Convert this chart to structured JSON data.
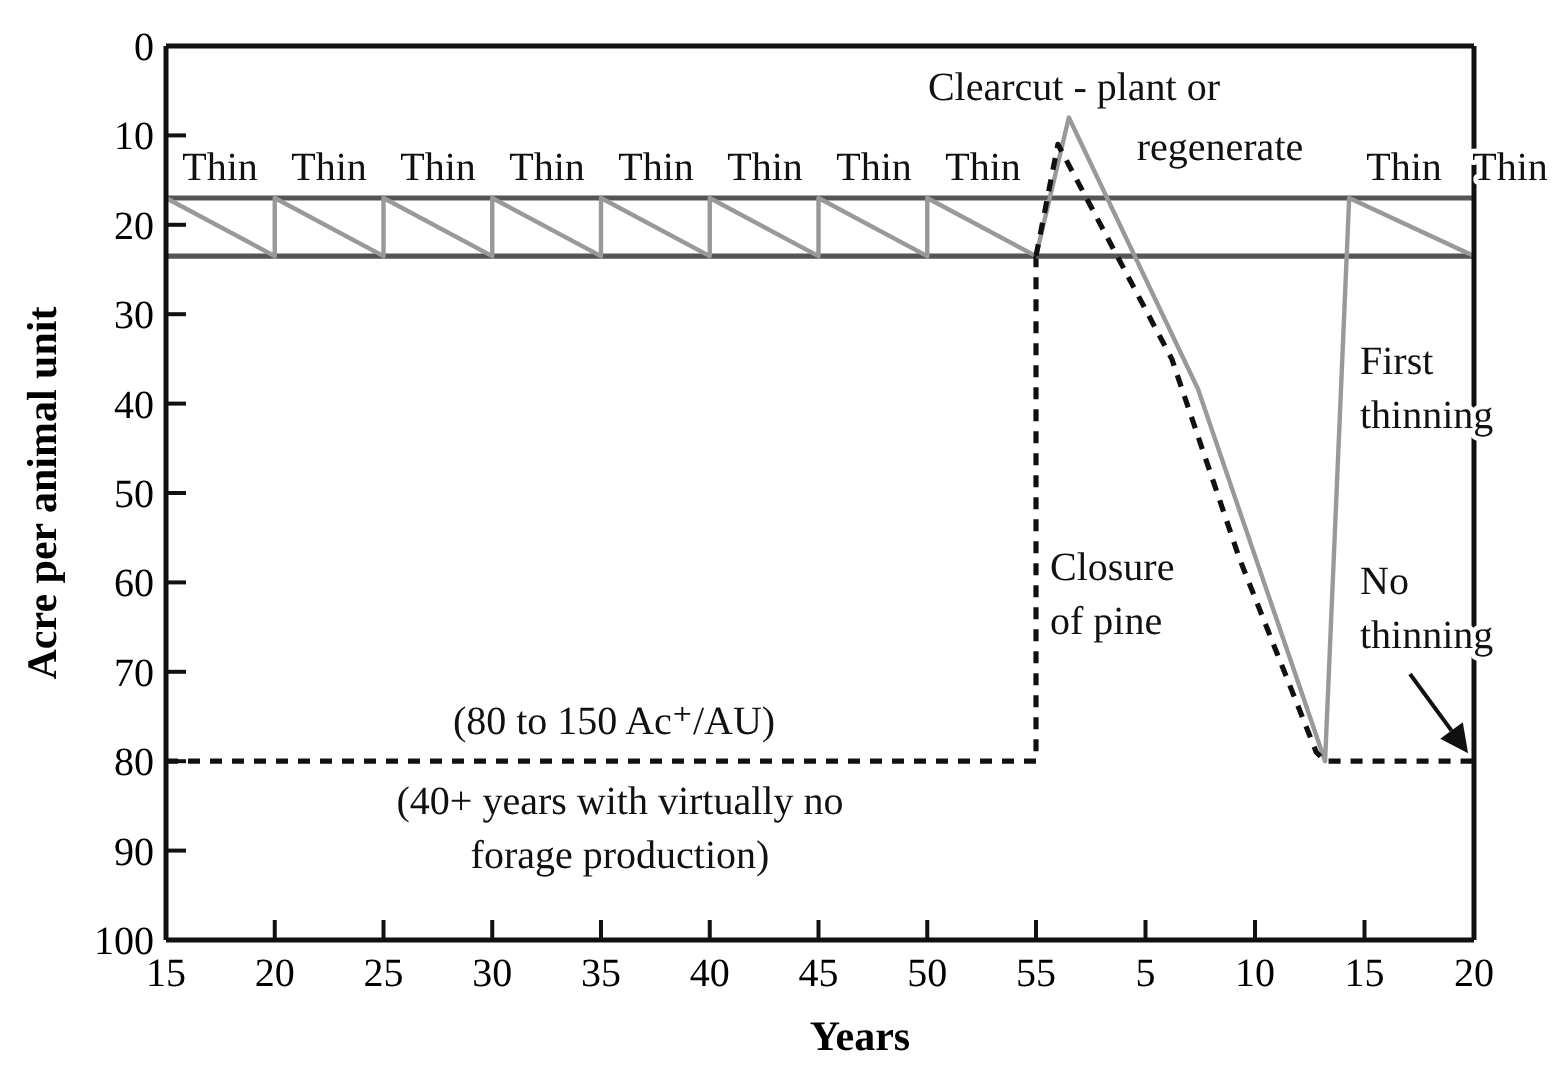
{
  "chart_data": [
    {
      "type": "line",
      "xlabel": "Years",
      "ylabel": "Acre per animal unit",
      "marker": "none",
      "xlim": [
        15,
        55
      ],
      "xticks": [
        15,
        20,
        25,
        30,
        35,
        40,
        45,
        50,
        55
      ],
      "ylim": [
        100,
        0
      ],
      "yticks": [
        0,
        10,
        20,
        30,
        40,
        50,
        60,
        70,
        80,
        90,
        100
      ],
      "series": [
        {
          "color": "#999999",
          "line_style": "solid",
          "x": [
            15,
            20,
            20,
            25,
            25,
            30,
            30,
            35,
            35,
            40,
            40,
            45,
            45,
            50,
            50,
            55
          ],
          "values": [
            17,
            23.5,
            17,
            23.5,
            17,
            23.5,
            17,
            23.5,
            17,
            23.5,
            17,
            23.5,
            17,
            23.5,
            17,
            23.5
          ]
        },
        {
          "color": "#111111",
          "line_style": "dashed",
          "x": [
            15,
            55,
            55
          ],
          "values": [
            80,
            80,
            23.5
          ]
        }
      ],
      "ref_lines": [
        {
          "axis": "y",
          "value": 17,
          "color": "#555555"
        },
        {
          "axis": "y",
          "value": 23.5,
          "color": "#555555"
        }
      ],
      "annotations": [
        "Thin",
        "Thin",
        "Thin",
        "Thin",
        "Thin",
        "Thin",
        "Thin",
        "Thin",
        "(80 to 150 Ac⁺/AU)",
        "(40+ years with virtually no\nforage production)"
      ]
    },
    {
      "type": "line",
      "marker": "none",
      "tick_labels": "x",
      "xlim": [
        0,
        20
      ],
      "xticks": [
        5,
        10,
        15,
        20
      ],
      "ylim": [
        100,
        0
      ],
      "series": [
        {
          "color": "#999999",
          "line_style": "solid",
          "x": [
            0,
            1.5,
            7.4,
            13.2,
            14.3,
            20
          ],
          "values": [
            23.5,
            8,
            38.4,
            80,
            17,
            23.5
          ]
        },
        {
          "color": "#111111",
          "line_style": "dashed",
          "x": [
            0,
            1,
            6.2,
            9.3,
            12.8,
            13.2,
            20
          ],
          "values": [
            23.5,
            11,
            35,
            57.4,
            79,
            80,
            80
          ]
        }
      ],
      "ref_lines": [
        {
          "axis": "y",
          "value": 17,
          "color": "#555555"
        },
        {
          "axis": "y",
          "value": 23.5,
          "color": "#555555"
        }
      ],
      "annotations": [
        "Clearcut - plant or",
        "regenerate",
        "Thin",
        "Thin",
        "First\nthinning",
        "Closure\nof pine",
        "No\nthinning"
      ]
    }
  ]
}
